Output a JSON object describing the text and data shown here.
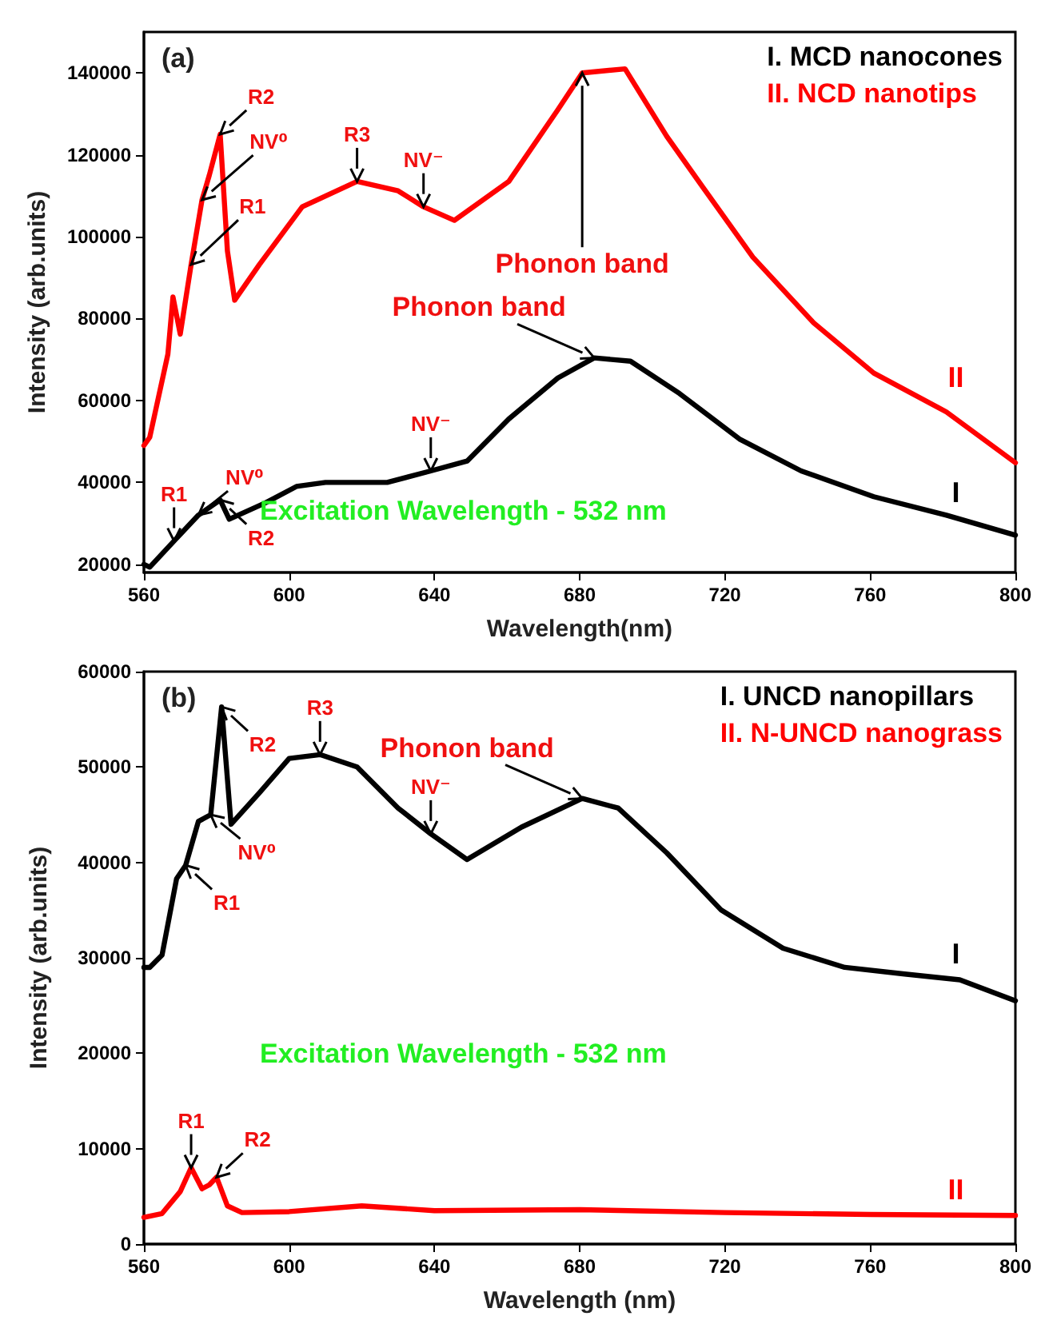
{
  "chart_data": [
    {
      "type": "line",
      "title": "(a)",
      "xlabel": "Wavelength(nm)",
      "ylabel": "Intensity (arb.units)",
      "xlim": [
        560,
        800
      ],
      "xticks": [
        560,
        600,
        640,
        680,
        720,
        760,
        800
      ],
      "ylim": [
        18000,
        150000
      ],
      "yticks": [
        20000,
        40000,
        60000,
        80000,
        100000,
        120000,
        140000
      ],
      "legend": "top right",
      "marker": "none",
      "line_style": "solid",
      "grid": false,
      "series": [
        {
          "name": "I. MCD nanocones",
          "color": "#000000",
          "x": [
            560,
            561.6,
            568.3,
            575,
            581,
            583.5,
            593.5,
            602,
            610,
            627,
            639,
            649,
            660.5,
            674,
            684,
            694,
            707.5,
            724,
            741,
            761,
            781,
            800
          ],
          "values": [
            20000,
            19300,
            25700,
            32000,
            35700,
            31000,
            35000,
            39000,
            40000,
            40000,
            42800,
            45200,
            55500,
            65500,
            70400,
            69600,
            61700,
            50600,
            42800,
            36500,
            32000,
            27100
          ]
        },
        {
          "name": "II. NCD nanotips",
          "color": "#ff0000",
          "x": [
            560,
            561.6,
            566.6,
            568,
            570,
            573,
            576,
            578,
            581,
            583,
            585,
            591.8,
            603.6,
            618.7,
            630,
            637,
            645.5,
            660.5,
            674,
            680.7,
            692.5,
            704,
            714,
            727.7,
            744.4,
            761,
            781,
            800
          ],
          "values": [
            49000,
            51000,
            71300,
            85300,
            76200,
            93200,
            109000,
            115000,
            125000,
            96500,
            84500,
            93200,
            107300,
            113500,
            111200,
            107300,
            104000,
            113500,
            131000,
            140000,
            141000,
            124500,
            112000,
            95000,
            79000,
            66700,
            57200,
            44800
          ]
        }
      ],
      "annotations": [
        {
          "text": "R1",
          "x": 573,
          "y": 93200
        },
        {
          "text": "NV⁰",
          "x": 576,
          "y": 109000
        },
        {
          "text": "R2",
          "x": 581,
          "y": 125000
        },
        {
          "text": "R3",
          "x": 618.7,
          "y": 113500
        },
        {
          "text": "NV⁻",
          "x": 637,
          "y": 107300
        },
        {
          "text": "Phonon band",
          "x": 680.7,
          "y": 140000
        },
        {
          "text": "R1",
          "x": 568.3,
          "y": 25700
        },
        {
          "text": "NV⁰",
          "x": 575,
          "y": 32000
        },
        {
          "text": "R2",
          "x": 581,
          "y": 35700
        },
        {
          "text": "NV⁻",
          "x": 639,
          "y": 42800
        },
        {
          "text": "Phonon band",
          "x": 684,
          "y": 70400
        },
        "II",
        "I",
        "Excitation Wavelength - 532 nm"
      ]
    },
    {
      "type": "line",
      "title": "(b)",
      "xlabel": "Wavelength (nm)",
      "ylabel": "Intensity (arb.units)",
      "xlim": [
        560,
        800
      ],
      "xticks": [
        560,
        600,
        640,
        680,
        720,
        760,
        800
      ],
      "ylim": [
        0,
        60000
      ],
      "yticks": [
        0,
        10000,
        20000,
        30000,
        40000,
        50000,
        60000
      ],
      "legend": "top right",
      "marker": "none",
      "line_style": "solid",
      "grid": false,
      "series": [
        {
          "name": "I. UNCD nanopillars",
          "color": "#000000",
          "x": [
            560,
            561.6,
            565,
            569,
            571.5,
            575,
            578.4,
            581.4,
            584,
            591.8,
            600,
            608.5,
            618.7,
            630,
            639,
            649,
            664,
            680.7,
            690.6,
            704,
            719,
            736,
            753,
            769.5,
            784.7,
            800
          ],
          "values": [
            29000,
            29000,
            30300,
            38300,
            39700,
            44300,
            45000,
            56300,
            44000,
            47300,
            50900,
            51300,
            50000,
            45700,
            43000,
            40300,
            43700,
            46700,
            45700,
            41000,
            35000,
            31000,
            29000,
            28300,
            27700,
            25500
          ]
        },
        {
          "name": "II. N-UNCD nanograss",
          "color": "#ff0000",
          "x": [
            560,
            565,
            570,
            573,
            576,
            578,
            580,
            583,
            587,
            600,
            620,
            640,
            680,
            720,
            760,
            800
          ],
          "values": [
            2800,
            3200,
            5500,
            8000,
            5800,
            6200,
            7000,
            4000,
            3300,
            3400,
            4000,
            3500,
            3600,
            3300,
            3100,
            3000
          ]
        }
      ],
      "annotations": [
        {
          "text": "R1",
          "x": 571.5,
          "y": 39700
        },
        {
          "text": "NV⁰",
          "x": 578.4,
          "y": 45000
        },
        {
          "text": "R2",
          "x": 581.4,
          "y": 56300
        },
        {
          "text": "R3",
          "x": 608.5,
          "y": 51300
        },
        {
          "text": "NV⁻",
          "x": 639,
          "y": 43000
        },
        {
          "text": "Phonon band",
          "x": 680.7,
          "y": 46700
        },
        {
          "text": "R1",
          "x": 573,
          "y": 8000
        },
        {
          "text": "R2",
          "x": 580,
          "y": 7000
        },
        "II",
        "I",
        "Excitation Wavelength - 532 nm"
      ]
    }
  ]
}
